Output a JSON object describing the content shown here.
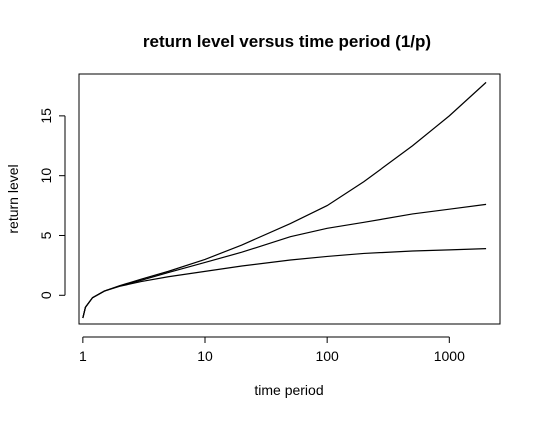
{
  "chart_data": {
    "type": "line",
    "title": "return level versus time period (1/p)",
    "xlabel": "time period",
    "ylabel": "return level",
    "x_scale": "log10",
    "xlim": [
      0.93,
      2600
    ],
    "ylim": [
      -2.4,
      18.5
    ],
    "x_ticks": [
      1,
      10,
      100,
      1000
    ],
    "x_tick_labels": [
      "1",
      "10",
      "100",
      "1000"
    ],
    "y_ticks": [
      0,
      5,
      10,
      15
    ],
    "y_tick_labels": [
      "0",
      "5",
      "10",
      "15"
    ],
    "grid": false,
    "legend": "none",
    "series": [
      {
        "x": [
          1,
          1.05,
          1.2,
          1.5,
          2,
          3,
          5,
          10,
          20,
          50,
          100,
          200,
          500,
          1000,
          2000
        ],
        "y": [
          -1.9,
          -1.0,
          -0.2,
          0.35,
          0.75,
          1.15,
          1.55,
          2.0,
          2.45,
          2.95,
          3.25,
          3.5,
          3.7,
          3.8,
          3.9
        ]
      },
      {
        "x": [
          1,
          1.05,
          1.2,
          1.5,
          2,
          3,
          5,
          10,
          20,
          50,
          100,
          200,
          500,
          1000,
          2000
        ],
        "y": [
          -1.9,
          -1.0,
          -0.2,
          0.35,
          0.78,
          1.25,
          1.9,
          2.75,
          3.6,
          4.9,
          5.6,
          6.1,
          6.8,
          7.2,
          7.6
        ]
      },
      {
        "x": [
          1,
          1.05,
          1.2,
          1.5,
          2,
          3,
          5,
          10,
          20,
          50,
          100,
          200,
          500,
          1000,
          2000
        ],
        "y": [
          -1.9,
          -1.0,
          -0.2,
          0.35,
          0.8,
          1.35,
          2.0,
          3.0,
          4.2,
          6.0,
          7.5,
          9.5,
          12.5,
          15.0,
          17.8
        ]
      }
    ]
  }
}
